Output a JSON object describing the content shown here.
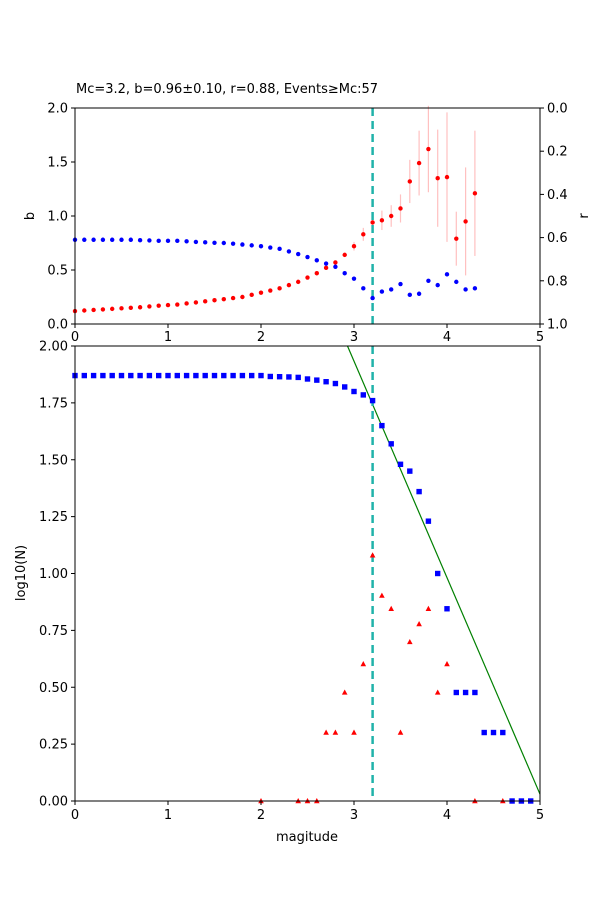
{
  "colors": {
    "b_series": "#ff0000",
    "r_series": "#0000ff",
    "errorbar": "#ffc0c0",
    "mc_line": "#20b2aa",
    "cumulative": "#0000ff",
    "noncumulative": "#ff0000",
    "fit_line": "#008000",
    "axes": "#000000"
  },
  "chart_data": [
    {
      "type": "scatter",
      "title": "Mc=3.2, b=0.96±0.10, r=0.88, Events≥Mc:57",
      "xlabel": "",
      "ylabel": "b",
      "ylabel_right": "r",
      "xlim": [
        0,
        5
      ],
      "ylim": [
        0,
        2
      ],
      "ylim_right": [
        1,
        0
      ],
      "xticks": [
        "0",
        "1",
        "2",
        "3",
        "4",
        "5"
      ],
      "yticks": [
        "0.0",
        "0.5",
        "1.0",
        "1.5",
        "2.0"
      ],
      "yticks_right": [
        "0.0",
        "0.2",
        "0.4",
        "0.6",
        "0.8",
        "1.0"
      ],
      "mc": 3.2,
      "grid": false,
      "series": [
        {
          "axis": "left",
          "marker": "circle",
          "x": [
            0.0,
            0.1,
            0.2,
            0.3,
            0.4,
            0.5,
            0.6,
            0.7,
            0.8,
            0.9,
            1.0,
            1.1,
            1.2,
            1.3,
            1.4,
            1.5,
            1.6,
            1.7,
            1.8,
            1.9,
            2.0,
            2.1,
            2.2,
            2.3,
            2.4,
            2.5,
            2.6,
            2.7,
            2.8,
            2.9,
            3.0,
            3.1,
            3.2,
            3.3,
            3.4,
            3.5,
            3.6,
            3.7,
            3.8,
            3.9,
            4.0,
            4.1,
            4.2,
            4.3
          ],
          "y": [
            0.12,
            0.125,
            0.13,
            0.135,
            0.14,
            0.145,
            0.15,
            0.155,
            0.163,
            0.17,
            0.175,
            0.18,
            0.19,
            0.2,
            0.21,
            0.22,
            0.23,
            0.24,
            0.25,
            0.27,
            0.29,
            0.31,
            0.33,
            0.36,
            0.39,
            0.43,
            0.47,
            0.52,
            0.57,
            0.64,
            0.72,
            0.83,
            0.94,
            0.96,
            1.0,
            1.07,
            1.32,
            1.49,
            1.62,
            1.35,
            1.36,
            0.79,
            0.95,
            1.21
          ],
          "err": [
            0,
            0,
            0,
            0,
            0,
            0,
            0,
            0,
            0,
            0,
            0,
            0,
            0,
            0,
            0,
            0,
            0,
            0,
            0,
            0,
            0,
            0,
            0,
            0,
            0,
            0,
            0,
            0,
            0,
            0,
            0.04,
            0.06,
            0.08,
            0.09,
            0.1,
            0.13,
            0.2,
            0.3,
            0.4,
            0.45,
            0.6,
            0.25,
            0.5,
            0.58
          ]
        },
        {
          "axis": "right",
          "marker": "circle",
          "x": [
            0.0,
            0.1,
            0.2,
            0.3,
            0.4,
            0.5,
            0.6,
            0.7,
            0.8,
            0.9,
            1.0,
            1.1,
            1.2,
            1.3,
            1.4,
            1.5,
            1.6,
            1.7,
            1.8,
            1.9,
            2.0,
            2.1,
            2.2,
            2.3,
            2.4,
            2.5,
            2.6,
            2.7,
            2.8,
            2.9,
            3.0,
            3.1,
            3.2,
            3.3,
            3.4,
            3.5,
            3.6,
            3.7,
            3.8,
            3.9,
            4.0,
            4.1,
            4.2,
            4.3
          ],
          "y": [
            0.61,
            0.61,
            0.61,
            0.61,
            0.61,
            0.61,
            0.61,
            0.612,
            0.613,
            0.615,
            0.615,
            0.615,
            0.617,
            0.62,
            0.622,
            0.624,
            0.625,
            0.628,
            0.632,
            0.636,
            0.64,
            0.646,
            0.652,
            0.664,
            0.676,
            0.69,
            0.705,
            0.72,
            0.735,
            0.765,
            0.79,
            0.835,
            0.88,
            0.85,
            0.84,
            0.815,
            0.865,
            0.86,
            0.8,
            0.82,
            0.77,
            0.805,
            0.84,
            0.835
          ]
        }
      ]
    },
    {
      "type": "scatter",
      "title": "",
      "xlabel": "magitude",
      "ylabel": "log10(N)",
      "xlim": [
        0,
        5
      ],
      "ylim": [
        0,
        2
      ],
      "xticks": [
        "0",
        "1",
        "2",
        "3",
        "4",
        "5"
      ],
      "yticks": [
        "0.00",
        "0.25",
        "0.50",
        "0.75",
        "1.00",
        "1.25",
        "1.50",
        "1.75",
        "2.00"
      ],
      "mc": 3.2,
      "grid": false,
      "fit_line": {
        "x": [
          2.93,
          5.0
        ],
        "y": [
          2.0,
          0.03
        ]
      },
      "series": [
        {
          "marker": "square",
          "x": [
            0.0,
            0.1,
            0.2,
            0.3,
            0.4,
            0.5,
            0.6,
            0.7,
            0.8,
            0.9,
            1.0,
            1.1,
            1.2,
            1.3,
            1.4,
            1.5,
            1.6,
            1.7,
            1.8,
            1.9,
            2.0,
            2.1,
            2.2,
            2.3,
            2.4,
            2.5,
            2.6,
            2.7,
            2.8,
            2.9,
            3.0,
            3.1,
            3.2,
            3.3,
            3.4,
            3.5,
            3.6,
            3.7,
            3.8,
            3.9,
            4.0,
            4.1,
            4.2,
            4.3,
            4.4,
            4.5,
            4.6,
            4.7,
            4.8,
            4.9
          ],
          "y": [
            1.87,
            1.87,
            1.87,
            1.87,
            1.87,
            1.87,
            1.87,
            1.87,
            1.87,
            1.87,
            1.87,
            1.87,
            1.87,
            1.87,
            1.87,
            1.87,
            1.87,
            1.87,
            1.87,
            1.87,
            1.87,
            1.866,
            1.865,
            1.864,
            1.862,
            1.855,
            1.85,
            1.843,
            1.835,
            1.82,
            1.8,
            1.785,
            1.76,
            1.65,
            1.57,
            1.48,
            1.45,
            1.36,
            1.23,
            1.0,
            0.845,
            0.477,
            0.477,
            0.477,
            0.301,
            0.301,
            0.301,
            0.0,
            0.0,
            0.0
          ]
        },
        {
          "marker": "triangle",
          "x": [
            2.0,
            2.4,
            2.5,
            2.6,
            2.7,
            2.8,
            2.9,
            3.0,
            3.1,
            3.2,
            3.3,
            3.4,
            3.5,
            3.6,
            3.7,
            3.8,
            3.9,
            4.0,
            4.3,
            4.6
          ],
          "y": [
            0.0,
            0.0,
            0.0,
            0.0,
            0.301,
            0.301,
            0.477,
            0.301,
            0.602,
            1.08,
            0.903,
            0.845,
            0.301,
            0.699,
            0.778,
            0.845,
            0.477,
            0.602,
            0.0,
            0.0
          ]
        }
      ]
    }
  ]
}
